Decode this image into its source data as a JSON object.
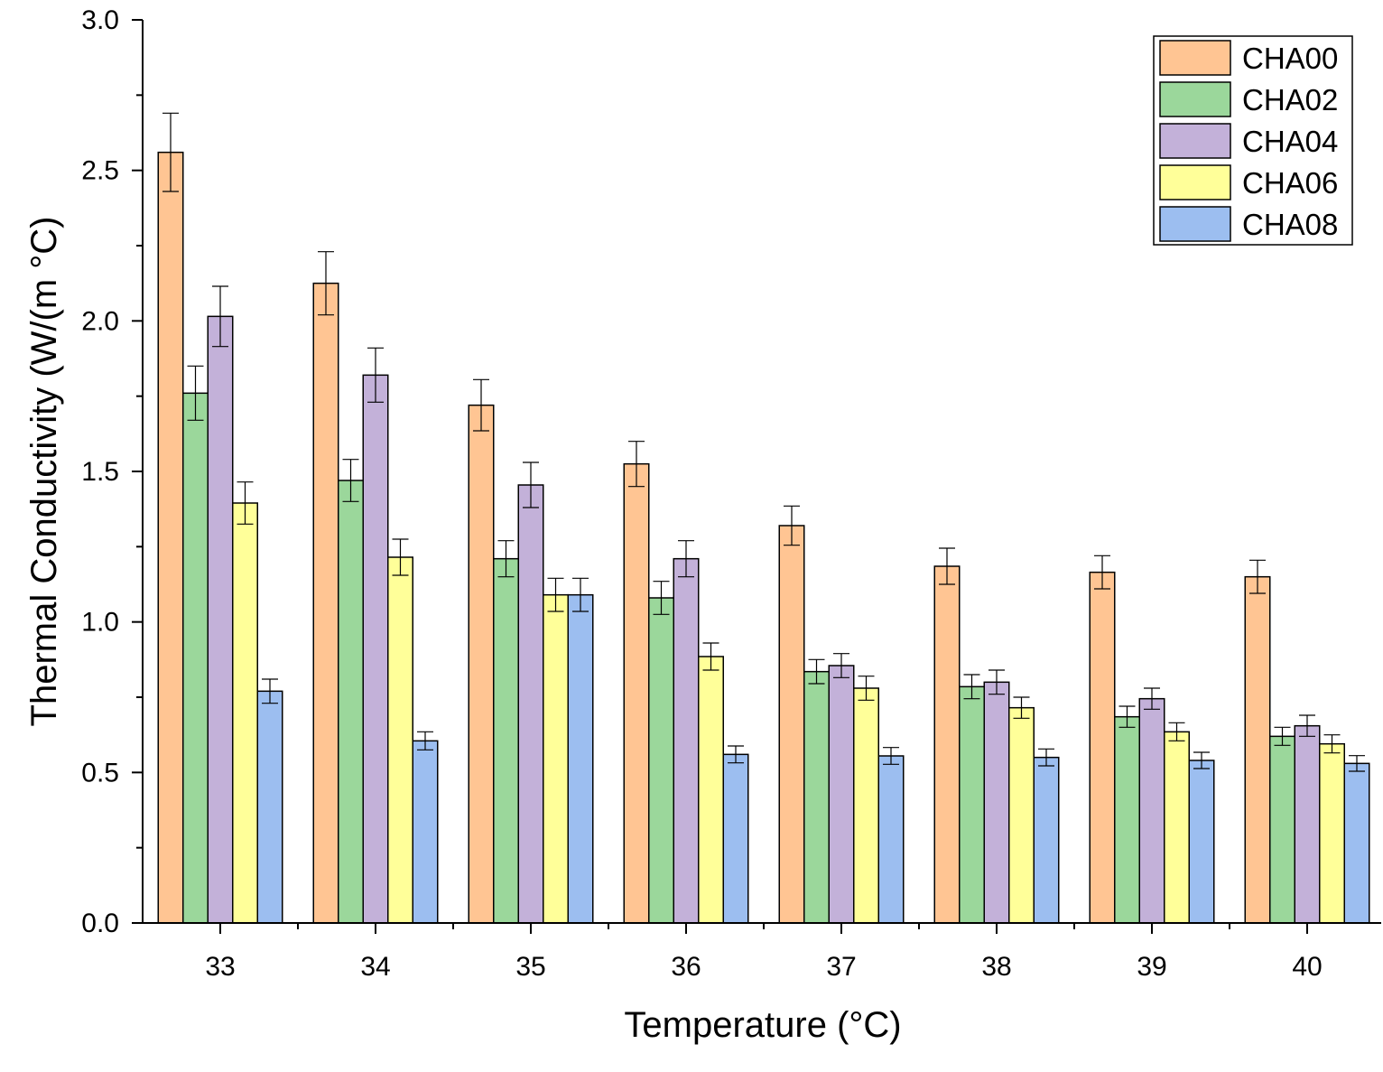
{
  "chart_data": {
    "type": "bar",
    "xlabel": "Temperature (°C)",
    "ylabel": "Thermal Conductivity (W/(m °C)",
    "ylim": [
      0,
      3.0
    ],
    "y_ticks": [
      "0.0",
      "0.5",
      "1.0",
      "1.5",
      "2.0",
      "2.5",
      "3.0"
    ],
    "categories": [
      "33",
      "34",
      "35",
      "36",
      "37",
      "38",
      "39",
      "40"
    ],
    "legend_position": "top-right",
    "grid": false,
    "series": [
      {
        "name": "CHA00",
        "color": "#FFC593",
        "values": [
          2.56,
          2.125,
          1.72,
          1.525,
          1.32,
          1.185,
          1.165,
          1.15
        ],
        "errors": [
          0.13,
          0.105,
          0.085,
          0.075,
          0.065,
          0.06,
          0.055,
          0.055
        ]
      },
      {
        "name": "CHA02",
        "color": "#9BD79B",
        "values": [
          1.76,
          1.47,
          1.21,
          1.08,
          0.835,
          0.785,
          0.685,
          0.62
        ],
        "errors": [
          0.09,
          0.07,
          0.06,
          0.055,
          0.04,
          0.04,
          0.035,
          0.03
        ]
      },
      {
        "name": "CHA04",
        "color": "#C3B1D9",
        "values": [
          2.015,
          1.82,
          1.455,
          1.21,
          0.855,
          0.8,
          0.745,
          0.655
        ],
        "errors": [
          0.1,
          0.09,
          0.075,
          0.06,
          0.04,
          0.04,
          0.035,
          0.035
        ]
      },
      {
        "name": "CHA06",
        "color": "#FFFF99",
        "values": [
          1.395,
          1.215,
          1.09,
          0.885,
          0.78,
          0.715,
          0.635,
          0.595
        ],
        "errors": [
          0.07,
          0.06,
          0.055,
          0.045,
          0.04,
          0.035,
          0.03,
          0.03
        ]
      },
      {
        "name": "CHA08",
        "color": "#9CBEF0",
        "values": [
          0.77,
          0.605,
          1.09,
          0.56,
          0.555,
          0.55,
          0.54,
          0.53
        ],
        "errors": [
          0.04,
          0.03,
          0.055,
          0.028,
          0.028,
          0.028,
          0.027,
          0.026
        ]
      }
    ]
  }
}
